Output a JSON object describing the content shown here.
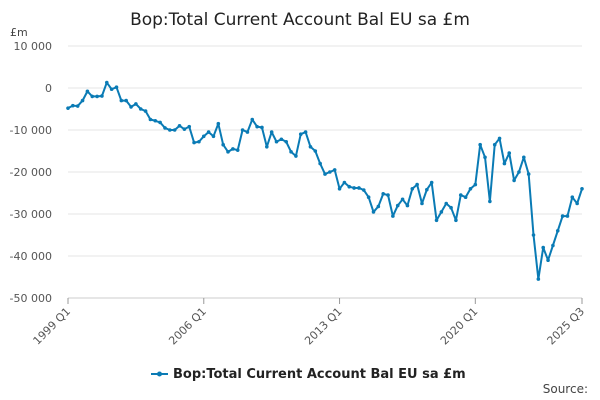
{
  "chart_data": {
    "type": "line",
    "title": "Bop:Total Current Account Bal EU sa £m",
    "unit_label": "£m",
    "xlabel": "",
    "ylabel": "",
    "ylim": [
      -50000,
      10000
    ],
    "y_ticks": [
      10000,
      0,
      -10000,
      -20000,
      -30000,
      -40000,
      -50000
    ],
    "y_tick_labels": [
      "10 000",
      "0",
      "-10 000",
      "-20 000",
      "-30 000",
      "-40 000",
      "-50 000"
    ],
    "x_ticks": [
      "1999 Q1",
      "2006 Q1",
      "2013 Q1",
      "2020 Q1",
      "2025 Q3"
    ],
    "grid": "horizontal",
    "legend_position": "bottom",
    "source_label": "Source:",
    "color": "#0a7bb5",
    "series": [
      {
        "name": "Bop:Total Current Account Bal EU sa £m",
        "x": [
          "1999 Q1",
          "1999 Q2",
          "1999 Q3",
          "1999 Q4",
          "2000 Q1",
          "2000 Q2",
          "2000 Q3",
          "2000 Q4",
          "2001 Q1",
          "2001 Q2",
          "2001 Q3",
          "2001 Q4",
          "2002 Q1",
          "2002 Q2",
          "2002 Q3",
          "2002 Q4",
          "2003 Q1",
          "2003 Q2",
          "2003 Q3",
          "2003 Q4",
          "2004 Q1",
          "2004 Q2",
          "2004 Q3",
          "2004 Q4",
          "2005 Q1",
          "2005 Q2",
          "2005 Q3",
          "2005 Q4",
          "2006 Q1",
          "2006 Q2",
          "2006 Q3",
          "2006 Q4",
          "2007 Q1",
          "2007 Q2",
          "2007 Q3",
          "2007 Q4",
          "2008 Q1",
          "2008 Q2",
          "2008 Q3",
          "2008 Q4",
          "2009 Q1",
          "2009 Q2",
          "2009 Q3",
          "2009 Q4",
          "2010 Q1",
          "2010 Q2",
          "2010 Q3",
          "2010 Q4",
          "2011 Q1",
          "2011 Q2",
          "2011 Q3",
          "2011 Q4",
          "2012 Q1",
          "2012 Q2",
          "2012 Q3",
          "2012 Q4",
          "2013 Q1",
          "2013 Q2",
          "2013 Q3",
          "2013 Q4",
          "2014 Q1",
          "2014 Q2",
          "2014 Q3",
          "2014 Q4",
          "2015 Q1",
          "2015 Q2",
          "2015 Q3",
          "2015 Q4",
          "2016 Q1",
          "2016 Q2",
          "2016 Q3",
          "2016 Q4",
          "2017 Q1",
          "2017 Q2",
          "2017 Q3",
          "2017 Q4",
          "2018 Q1",
          "2018 Q2",
          "2018 Q3",
          "2018 Q4",
          "2019 Q1",
          "2019 Q2",
          "2019 Q3",
          "2019 Q4",
          "2020 Q1",
          "2020 Q2",
          "2020 Q3",
          "2020 Q4",
          "2021 Q1",
          "2021 Q2",
          "2021 Q3",
          "2021 Q4",
          "2022 Q1",
          "2022 Q2",
          "2022 Q3",
          "2022 Q4",
          "2023 Q1",
          "2023 Q2",
          "2023 Q3",
          "2023 Q4",
          "2024 Q1",
          "2024 Q2",
          "2024 Q3",
          "2024 Q4",
          "2025 Q1",
          "2025 Q2",
          "2025 Q3"
        ],
        "values": [
          -4800,
          -4200,
          -4300,
          -3000,
          -800,
          -2000,
          -2000,
          -1900,
          1300,
          -300,
          200,
          -3000,
          -3000,
          -4500,
          -3800,
          -5000,
          -5500,
          -7500,
          -7800,
          -8200,
          -9500,
          -10000,
          -10000,
          -9000,
          -9800,
          -9200,
          -13000,
          -12800,
          -11500,
          -10500,
          -11500,
          -8500,
          -13500,
          -15200,
          -14500,
          -14800,
          -10000,
          -10500,
          -7500,
          -9200,
          -9400,
          -14000,
          -10500,
          -12800,
          -12200,
          -12800,
          -15200,
          -16200,
          -11000,
          -10500,
          -14000,
          -15000,
          -18000,
          -20500,
          -20000,
          -19500,
          -24000,
          -22500,
          -23500,
          -23800,
          -23800,
          -24300,
          -26000,
          -29500,
          -28200,
          -25200,
          -25500,
          -30500,
          -28000,
          -26500,
          -28000,
          -24000,
          -23000,
          -27500,
          -24200,
          -22500,
          -31500,
          -29500,
          -27500,
          -28500,
          -31500,
          -25500,
          -26000,
          -24000,
          -23000,
          -13500,
          -16500,
          -27000,
          -13500,
          -12000,
          -18000,
          -15500,
          -22000,
          -20000,
          -16500,
          -20500,
          -35000,
          -45500,
          -38000,
          -41000,
          -37500,
          -34000,
          -30500,
          -30500,
          -26000,
          -27500,
          -24000
        ]
      }
    ]
  }
}
